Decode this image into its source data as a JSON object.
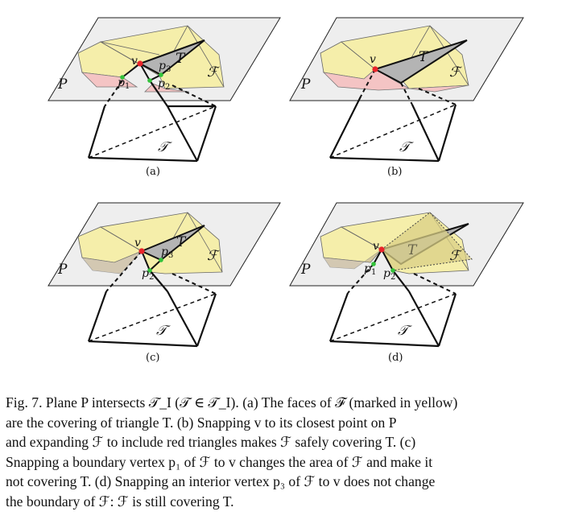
{
  "figure": {
    "panels": [
      {
        "id": "a",
        "caption": "(a)",
        "labels": {
          "v": "v",
          "p1": "p",
          "p1_sub": "1",
          "p2": "p",
          "p2_sub": "2",
          "p3": "p",
          "p3_sub": "3",
          "T": "T",
          "F": "ℱ",
          "P": "P",
          "tet": "𝒯"
        }
      },
      {
        "id": "b",
        "caption": "(b)",
        "labels": {
          "v": "v",
          "T": "T",
          "F": "ℱ",
          "P": "P",
          "tet": "𝒯"
        }
      },
      {
        "id": "c",
        "caption": "(c)",
        "labels": {
          "v": "v",
          "p2": "p",
          "p2_sub": "2",
          "p3": "p",
          "p3_sub": "3",
          "T": "T",
          "F": "ℱ",
          "P": "P",
          "tet": "𝒯"
        }
      },
      {
        "id": "d",
        "caption": "(d)",
        "labels": {
          "v": "v",
          "p1": "p",
          "p1_sub": "1",
          "p2": "p",
          "p2_sub": "2",
          "T": "T",
          "F": "ℱ",
          "P": "P",
          "tet": "𝒯"
        }
      }
    ],
    "colors": {
      "plane": "#eeeeee",
      "covering_faces": "#f5eeaa",
      "red_triangles": "#f4c4c4",
      "triangle_T": "#b4b4b4",
      "vertex_v": "#e8242a",
      "vertex_p": "#32c23a"
    },
    "caption": "Fig. 7.  Plane P intersects 𝒯_I (𝒯 ∈ 𝒯_I). (a) The faces of ℱ (marked in yellow) are the covering of triangle T. (b) Snapping v to its closest point on P and expanding ℱ to include red triangles makes ℱ safely covering T. (c) Snapping a boundary vertex p₁ of ℱ to v changes the area of ℱ and make it not covering T. (d) Snapping an interior vertex p₃ of ℱ to v does not change the boundary of ℱ: ℱ is still covering T.",
    "caption_lines": [
      "Fig. 7.  Plane P intersects 𝒯_I (𝒯 ∈ 𝒯_I). (a) The faces of ℱ (marked in yellow)",
      "are the covering of triangle T. (b) Snapping v to its closest point on P",
      "and expanding ℱ to include red triangles makes ℱ safely covering T. (c)",
      "Snapping a boundary vertex p₁ of ℱ to v changes the area of ℱ and make it",
      "not covering T. (d) Snapping an interior vertex p₃ of ℱ to v does not change",
      "the boundary of ℱ: ℱ is still covering T."
    ]
  }
}
